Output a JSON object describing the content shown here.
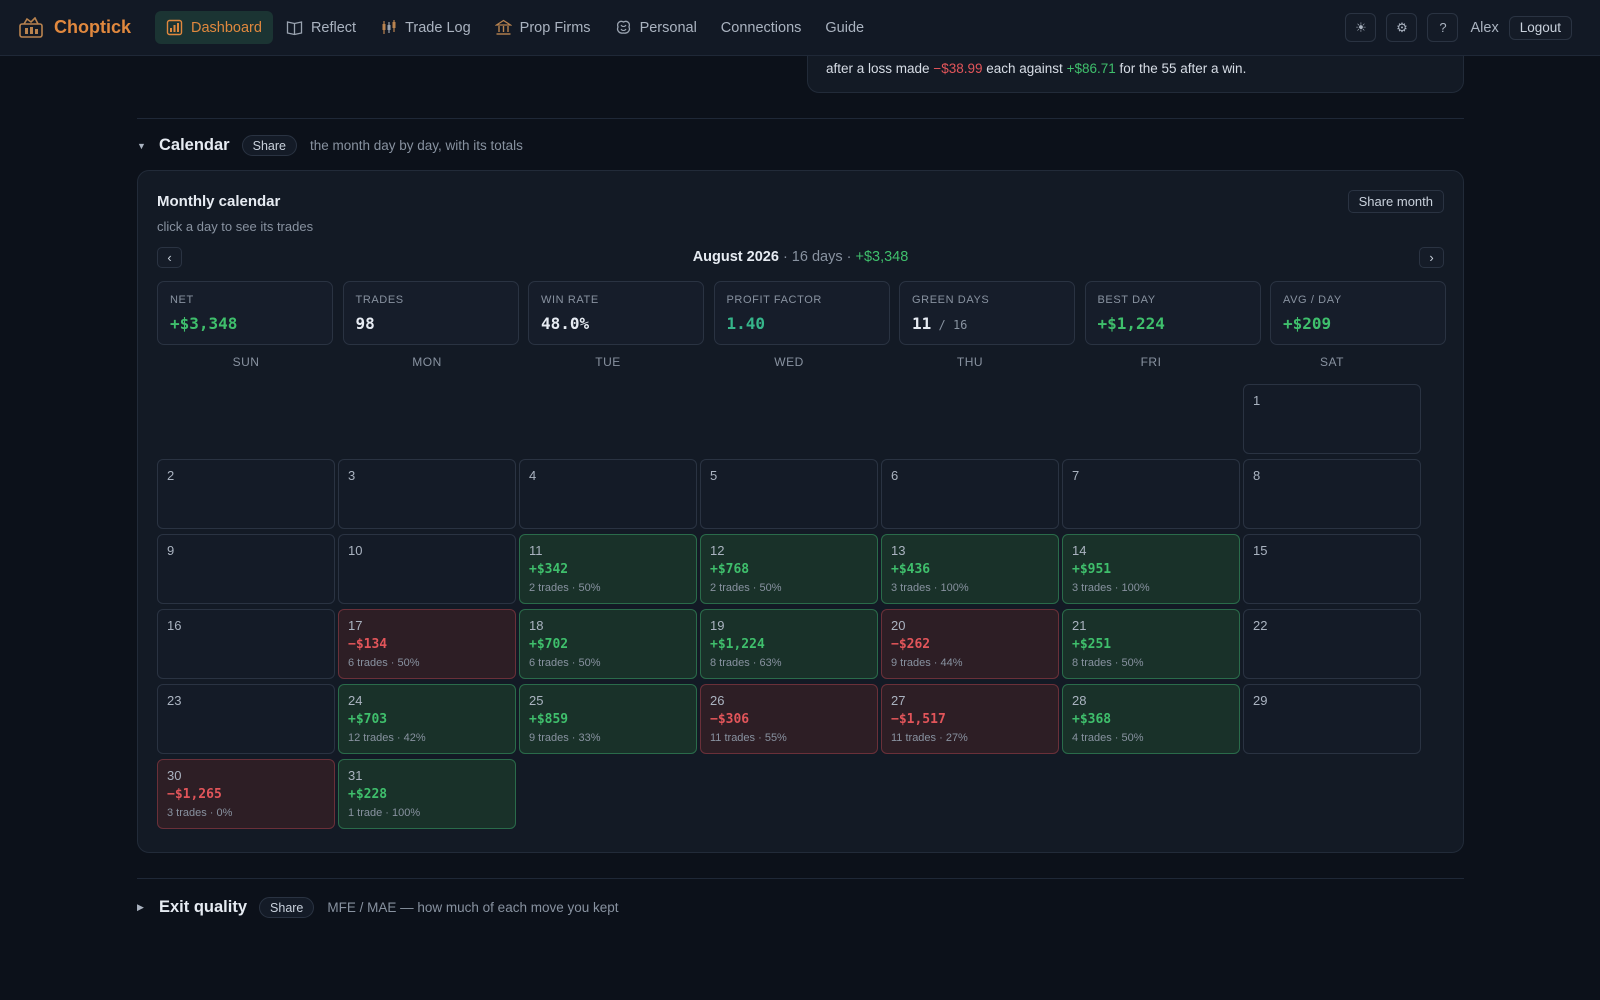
{
  "brand": {
    "name": "Choptick"
  },
  "nav": [
    {
      "key": "dashboard",
      "label": "Dashboard",
      "icon": "dashboard-icon",
      "active": true
    },
    {
      "key": "reflect",
      "label": "Reflect",
      "icon": "book-icon",
      "active": false
    },
    {
      "key": "trade-log",
      "label": "Trade Log",
      "icon": "candlestick-icon",
      "active": false
    },
    {
      "key": "prop-firms",
      "label": "Prop Firms",
      "icon": "bank-icon",
      "active": false
    },
    {
      "key": "personal",
      "label": "Personal",
      "icon": "brain-icon",
      "active": false
    },
    {
      "key": "connections",
      "label": "Connections",
      "icon": "",
      "active": false
    },
    {
      "key": "guide",
      "label": "Guide",
      "icon": "",
      "active": false
    }
  ],
  "topright": {
    "theme_icon": "☀",
    "settings_icon": "⚙",
    "help_label": "?",
    "user": "Alex",
    "logout": "Logout"
  },
  "insight": {
    "prefix": "after a loss made ",
    "loss_value": "−$38.99",
    "middle": " each against ",
    "win_value": "+$86.71",
    "suffix": " for the 55 after a win."
  },
  "calendar_section": {
    "title": "Calendar",
    "share": "Share",
    "description": "the month day by day, with its totals",
    "card_title": "Monthly calendar",
    "card_subtitle": "click a day to see its trades",
    "share_month": "Share month",
    "prev": "‹",
    "next": "›",
    "month": "August 2026",
    "days_summary": " · 16 days · ",
    "month_net": "+$3,348",
    "stats": [
      {
        "label": "NET",
        "value": "+$3,348",
        "tone": "pos",
        "sub": ""
      },
      {
        "label": "TRADES",
        "value": "98",
        "tone": "",
        "sub": ""
      },
      {
        "label": "WIN RATE",
        "value": "48.0%",
        "tone": "",
        "sub": ""
      },
      {
        "label": "PROFIT FACTOR",
        "value": "1.40",
        "tone": "teal",
        "sub": ""
      },
      {
        "label": "GREEN DAYS",
        "value": "11",
        "tone": "",
        "sub": " / 16"
      },
      {
        "label": "BEST DAY",
        "value": "+$1,224",
        "tone": "pos",
        "sub": ""
      },
      {
        "label": "AVG / DAY",
        "value": "+$209",
        "tone": "pos",
        "sub": ""
      }
    ],
    "weekdays": [
      "SUN",
      "MON",
      "TUE",
      "WED",
      "THU",
      "FRI",
      "SAT"
    ],
    "first_weekday": 6,
    "days": [
      {
        "n": "1"
      },
      {
        "n": "2"
      },
      {
        "n": "3"
      },
      {
        "n": "4"
      },
      {
        "n": "5"
      },
      {
        "n": "6"
      },
      {
        "n": "7"
      },
      {
        "n": "8"
      },
      {
        "n": "9"
      },
      {
        "n": "10"
      },
      {
        "n": "11",
        "pnl": "+$342",
        "meta": "2 trades · 50%",
        "tone": "win"
      },
      {
        "n": "12",
        "pnl": "+$768",
        "meta": "2 trades · 50%",
        "tone": "win"
      },
      {
        "n": "13",
        "pnl": "+$436",
        "meta": "3 trades · 100%",
        "tone": "win"
      },
      {
        "n": "14",
        "pnl": "+$951",
        "meta": "3 trades · 100%",
        "tone": "win"
      },
      {
        "n": "15"
      },
      {
        "n": "16"
      },
      {
        "n": "17",
        "pnl": "−$134",
        "meta": "6 trades · 50%",
        "tone": "loss"
      },
      {
        "n": "18",
        "pnl": "+$702",
        "meta": "6 trades · 50%",
        "tone": "win"
      },
      {
        "n": "19",
        "pnl": "+$1,224",
        "meta": "8 trades · 63%",
        "tone": "win"
      },
      {
        "n": "20",
        "pnl": "−$262",
        "meta": "9 trades · 44%",
        "tone": "loss"
      },
      {
        "n": "21",
        "pnl": "+$251",
        "meta": "8 trades · 50%",
        "tone": "win"
      },
      {
        "n": "22"
      },
      {
        "n": "23"
      },
      {
        "n": "24",
        "pnl": "+$703",
        "meta": "12 trades · 42%",
        "tone": "win"
      },
      {
        "n": "25",
        "pnl": "+$859",
        "meta": "9 trades · 33%",
        "tone": "win"
      },
      {
        "n": "26",
        "pnl": "−$306",
        "meta": "11 trades · 55%",
        "tone": "loss"
      },
      {
        "n": "27",
        "pnl": "−$1,517",
        "meta": "11 trades · 27%",
        "tone": "loss"
      },
      {
        "n": "28",
        "pnl": "+$368",
        "meta": "4 trades · 50%",
        "tone": "win"
      },
      {
        "n": "29"
      },
      {
        "n": "30",
        "pnl": "−$1,265",
        "meta": "3 trades · 0%",
        "tone": "loss"
      },
      {
        "n": "31",
        "pnl": "+$228",
        "meta": "1 trade · 100%",
        "tone": "win"
      }
    ]
  },
  "exit_section": {
    "title": "Exit quality",
    "share": "Share",
    "description": "MFE / MAE — how much of each move you kept"
  },
  "colors": {
    "accent": "#e0883e",
    "positive": "#3fbf6c",
    "negative": "#e2555a",
    "background": "#0c111a"
  }
}
